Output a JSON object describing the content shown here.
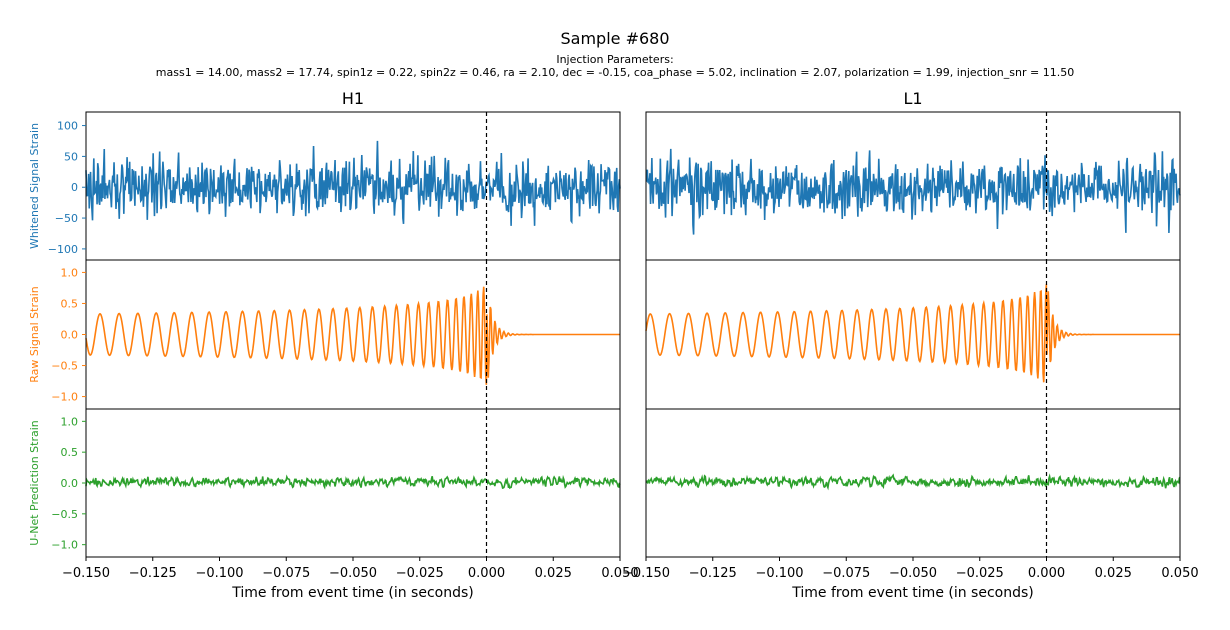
{
  "figure": {
    "title": "Sample #680",
    "params_heading": "Injection Parameters:",
    "params_text": "mass1 = 14.00, mass2 = 17.74, spin1z = 0.22, spin2z = 0.46, ra = 2.10, dec = -0.15, coa_phase = 5.02, inclination = 2.07, polarization = 1.99, injection_snr = 11.50"
  },
  "chart_data": {
    "type": "line",
    "columns": [
      {
        "detector": "H1",
        "xlim": [
          -0.15,
          0.05
        ],
        "xlabel": "Time from event time (in seconds)",
        "xticks": [
          -0.15,
          -0.125,
          -0.1,
          -0.075,
          -0.05,
          -0.025,
          0.0,
          0.025,
          0.05
        ],
        "xtick_labels": [
          "−0.150",
          "−0.125",
          "−0.100",
          "−0.075",
          "−0.050",
          "−0.025",
          "0.000",
          "0.025",
          "0.050"
        ],
        "event_marker_x": 0.0,
        "seed": 680,
        "chirp_polarity": 1
      },
      {
        "detector": "L1",
        "xlim": [
          -0.15,
          0.05
        ],
        "xlabel": "Time from event time (in seconds)",
        "xticks": [
          -0.15,
          -0.125,
          -0.1,
          -0.075,
          -0.05,
          -0.025,
          0.0,
          0.025,
          0.05
        ],
        "xtick_labels": [
          "−0.150",
          "−0.125",
          "−0.100",
          "−0.075",
          "−0.050",
          "−0.025",
          "0.000",
          "0.025",
          "0.050"
        ],
        "event_marker_x": 0.0,
        "seed": 1361,
        "chirp_polarity": -1
      }
    ],
    "rows": [
      {
        "name": "Whitened Signal Strain",
        "color": "#1f77b4",
        "ylim": [
          -118,
          122
        ],
        "yticks": [
          -100,
          -50,
          0,
          50,
          100
        ],
        "ytick_labels": [
          "−100",
          "−50",
          "0",
          "50",
          "100"
        ],
        "amplitude_range": [
          -97,
          97
        ]
      },
      {
        "name": "Raw Signal Strain",
        "color": "#ff7f0e",
        "ylim": [
          -1.2,
          1.2
        ],
        "yticks": [
          -1.0,
          -0.5,
          0.0,
          0.5,
          1.0
        ],
        "ytick_labels": [
          "−1.0",
          "−0.5",
          "0.0",
          "0.5",
          "1.0"
        ],
        "amplitude_range": [
          -1.0,
          1.0
        ]
      },
      {
        "name": "U-Net Prediction Strain",
        "color": "#2ca02c",
        "ylim": [
          -1.2,
          1.2
        ],
        "yticks": [
          -1.0,
          -0.5,
          0.0,
          0.5,
          1.0
        ],
        "ytick_labels": [
          "−1.0",
          "−0.5",
          "0.0",
          "0.5",
          "1.0"
        ],
        "amplitude_range": [
          -0.17,
          0.3
        ]
      }
    ]
  }
}
